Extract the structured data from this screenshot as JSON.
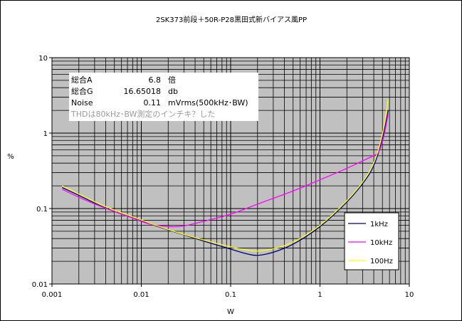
{
  "chart_data": {
    "type": "line",
    "title": "2SK373前段＋50R-P28黒田式新バイアス風PP",
    "xlabel": "W",
    "ylabel": "%",
    "xscale": "log",
    "yscale": "log",
    "xlim": [
      0.001,
      10
    ],
    "ylim": [
      0.01,
      10
    ],
    "grid": true,
    "legend_position": "bottom-right",
    "x_tick_labels": [
      "0.001",
      "0.01",
      "0.1",
      "1",
      "10"
    ],
    "y_tick_labels": [
      "0.01",
      "0.1",
      "1",
      "10"
    ],
    "colors": {
      "plot_background": "#c0c0c0",
      "grid": "#000000",
      "1kHz": "#000080",
      "10kHz": "#ff00ff",
      "100Hz": "#ffff00"
    },
    "series": [
      {
        "name": "1kHz",
        "color": "#000080",
        "points": [
          [
            0.0013,
            0.19
          ],
          [
            0.002,
            0.15
          ],
          [
            0.004,
            0.1
          ],
          [
            0.008,
            0.075
          ],
          [
            0.02,
            0.052
          ],
          [
            0.05,
            0.037
          ],
          [
            0.1,
            0.029
          ],
          [
            0.15,
            0.025
          ],
          [
            0.2,
            0.0235
          ],
          [
            0.3,
            0.026
          ],
          [
            0.5,
            0.033
          ],
          [
            1,
            0.056
          ],
          [
            2,
            0.12
          ],
          [
            3,
            0.21
          ],
          [
            4,
            0.35
          ],
          [
            5,
            0.8
          ],
          [
            5.8,
            2.0
          ]
        ]
      },
      {
        "name": "10kHz",
        "color": "#ff00ff",
        "points": [
          [
            0.0013,
            0.18
          ],
          [
            0.002,
            0.14
          ],
          [
            0.004,
            0.1
          ],
          [
            0.008,
            0.075
          ],
          [
            0.012,
            0.062
          ],
          [
            0.02,
            0.057
          ],
          [
            0.03,
            0.058
          ],
          [
            0.05,
            0.068
          ],
          [
            0.1,
            0.083
          ],
          [
            0.2,
            0.115
          ],
          [
            0.5,
            0.17
          ],
          [
            1,
            0.24
          ],
          [
            2,
            0.34
          ],
          [
            3,
            0.43
          ],
          [
            4,
            0.5
          ],
          [
            4.6,
            0.55
          ],
          [
            5.2,
            0.9
          ],
          [
            5.8,
            1.8
          ]
        ]
      },
      {
        "name": "100Hz",
        "color": "#ffff00",
        "points": [
          [
            0.0013,
            0.2
          ],
          [
            0.002,
            0.155
          ],
          [
            0.004,
            0.105
          ],
          [
            0.008,
            0.078
          ],
          [
            0.02,
            0.052
          ],
          [
            0.05,
            0.038
          ],
          [
            0.1,
            0.031
          ],
          [
            0.15,
            0.028
          ],
          [
            0.2,
            0.027
          ],
          [
            0.3,
            0.029
          ],
          [
            0.5,
            0.035
          ],
          [
            1,
            0.058
          ],
          [
            2,
            0.125
          ],
          [
            3,
            0.22
          ],
          [
            4,
            0.38
          ],
          [
            5,
            0.9
          ],
          [
            5.8,
            2.8
          ]
        ]
      }
    ],
    "annotation": {
      "lines": [
        {
          "label": "総合A",
          "value": "6.8",
          "unit": "倍"
        },
        {
          "label": "総合G",
          "value": "16.65018",
          "unit": "db"
        },
        {
          "label": "Noise",
          "value": "0.11",
          "unit": "mVrms(500kHz･BW)"
        }
      ],
      "note": "THDは80kHz･BW測定のインチキ？した"
    }
  }
}
